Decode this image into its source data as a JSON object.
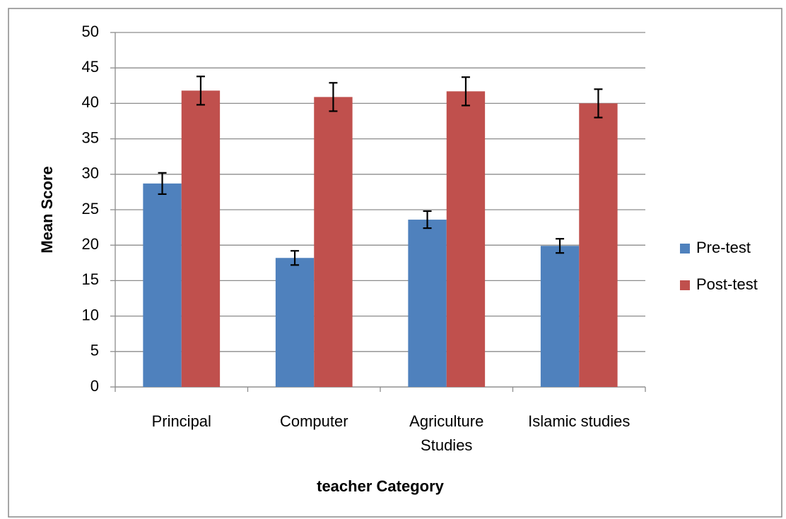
{
  "chart_data": {
    "type": "bar",
    "xlabel": "teacher Category",
    "ylabel": "Mean Score",
    "categories": [
      "Principal",
      "Computer",
      "Agriculture Studies",
      "Islamic studies"
    ],
    "series": [
      {
        "name": "Pre-test",
        "color": "#4f81bd",
        "values": [
          28.7,
          18.2,
          23.6,
          19.9
        ],
        "errors": [
          1.5,
          1.0,
          1.2,
          1.0
        ]
      },
      {
        "name": "Post-test",
        "color": "#c0504d",
        "values": [
          41.8,
          40.9,
          41.7,
          40.0
        ],
        "errors": [
          2.0,
          2.0,
          2.0,
          2.0
        ]
      }
    ],
    "ylim": [
      0,
      50
    ],
    "yticks": [
      0,
      5,
      10,
      15,
      20,
      25,
      30,
      35,
      40,
      45,
      50
    ],
    "grid": true,
    "legend": "right"
  }
}
